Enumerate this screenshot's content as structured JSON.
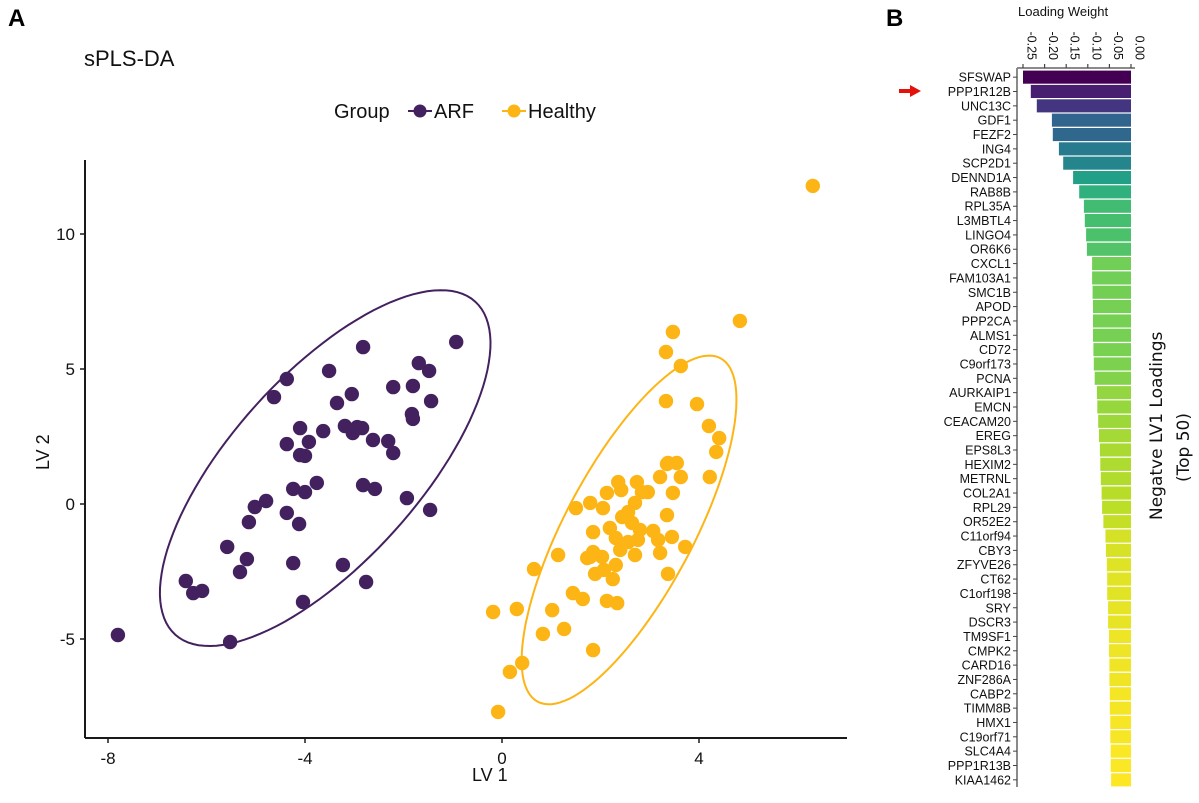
{
  "panel_a_label": "A",
  "panel_b_label": "B",
  "chart_data": [
    {
      "type": "scatter",
      "title": "sPLS-DA",
      "xlabel": "LV 1",
      "ylabel": "LV 2",
      "xlim": [
        -8.4,
        7.0
      ],
      "ylim": [
        -8.7,
        12.8
      ],
      "xticks": [
        -8,
        -4,
        0,
        4
      ],
      "yticks": [
        -5,
        0,
        5,
        10
      ],
      "xtick_labels": [
        "-8",
        "-4",
        "0",
        "4"
      ],
      "ytick_labels": [
        "-5",
        "0",
        "5",
        "10"
      ],
      "grid": false,
      "legend": {
        "title": "Group",
        "placement": "top",
        "entries": [
          {
            "label": "ARF",
            "color": "#43215f"
          },
          {
            "label": "Healthy",
            "color": "#fdb515"
          }
        ]
      },
      "series": [
        {
          "name": "ARF",
          "color": "#43215f",
          "ellipse": {
            "cx": -3.59,
            "cy": 1.33,
            "rx": 4.55,
            "ry": 1.9,
            "angle_deg": 48
          },
          "points": [
            [
              -2.82,
              5.81
            ],
            [
              -0.93,
              6.0
            ],
            [
              -4.37,
              4.63
            ],
            [
              -4.63,
              3.96
            ],
            [
              -3.51,
              4.93
            ],
            [
              -1.69,
              5.22
            ],
            [
              -1.48,
              4.93
            ],
            [
              -2.21,
              4.33
            ],
            [
              -1.81,
              4.37
            ],
            [
              -1.44,
              3.81
            ],
            [
              -1.83,
              3.33
            ],
            [
              -1.81,
              3.15
            ],
            [
              -3.05,
              4.07
            ],
            [
              -3.35,
              3.74
            ],
            [
              -4.1,
              2.81
            ],
            [
              -3.63,
              2.7
            ],
            [
              -4.37,
              2.22
            ],
            [
              -3.92,
              2.3
            ],
            [
              -3.19,
              2.89
            ],
            [
              -2.94,
              2.85
            ],
            [
              -2.84,
              2.81
            ],
            [
              -3.03,
              2.63
            ],
            [
              -2.62,
              2.37
            ],
            [
              -2.31,
              2.33
            ],
            [
              -2.21,
              1.89
            ],
            [
              -4.1,
              1.81
            ],
            [
              -4.0,
              1.78
            ],
            [
              -5.14,
              -0.67
            ],
            [
              -5.02,
              -0.11
            ],
            [
              -4.79,
              0.11
            ],
            [
              -5.58,
              -1.59
            ],
            [
              -5.18,
              -2.04
            ],
            [
              -5.32,
              -2.52
            ],
            [
              -6.42,
              -2.85
            ],
            [
              -6.27,
              -3.3
            ],
            [
              -6.09,
              -3.22
            ],
            [
              -5.52,
              -5.11
            ],
            [
              -4.04,
              -3.63
            ],
            [
              -4.37,
              -0.33
            ],
            [
              -4.12,
              -0.74
            ],
            [
              -4.24,
              -2.19
            ],
            [
              -4.24,
              0.56
            ],
            [
              -4.0,
              0.44
            ],
            [
              -3.76,
              0.78
            ],
            [
              -3.23,
              -2.26
            ],
            [
              -2.76,
              -2.89
            ],
            [
              -2.82,
              0.7
            ],
            [
              -2.58,
              0.56
            ],
            [
              -1.93,
              0.22
            ],
            [
              -1.46,
              -0.22
            ],
            [
              -7.8,
              -4.85
            ]
          ]
        },
        {
          "name": "Healthy",
          "color": "#fdb515",
          "ellipse": {
            "cx": 2.58,
            "cy": -0.96,
            "rx": 3.95,
            "ry": 1.3,
            "angle_deg": 62
          },
          "points": [
            [
              6.31,
              11.78
            ],
            [
              4.83,
              6.78
            ],
            [
              3.47,
              6.37
            ],
            [
              3.33,
              5.63
            ],
            [
              3.63,
              5.11
            ],
            [
              3.33,
              3.81
            ],
            [
              3.96,
              3.7
            ],
            [
              4.2,
              2.89
            ],
            [
              4.41,
              2.44
            ],
            [
              4.35,
              1.93
            ],
            [
              4.22,
              1.0
            ],
            [
              3.37,
              1.52
            ],
            [
              3.21,
              1.0
            ],
            [
              3.47,
              0.41
            ],
            [
              3.35,
              1.48
            ],
            [
              3.55,
              1.52
            ],
            [
              3.63,
              1.0
            ],
            [
              2.36,
              0.81
            ],
            [
              2.42,
              0.52
            ],
            [
              2.74,
              0.81
            ],
            [
              2.84,
              0.44
            ],
            [
              2.96,
              0.44
            ],
            [
              2.13,
              0.41
            ],
            [
              1.79,
              0.04
            ],
            [
              1.5,
              -0.15
            ],
            [
              2.05,
              -0.15
            ],
            [
              2.7,
              0.04
            ],
            [
              2.56,
              -0.3
            ],
            [
              2.44,
              -0.48
            ],
            [
              3.35,
              -0.41
            ],
            [
              2.64,
              -0.7
            ],
            [
              1.85,
              -1.04
            ],
            [
              2.19,
              -0.89
            ],
            [
              2.8,
              -0.96
            ],
            [
              3.07,
              -1.0
            ],
            [
              2.31,
              -1.26
            ],
            [
              2.56,
              -1.41
            ],
            [
              2.76,
              -1.33
            ],
            [
              3.17,
              -1.33
            ],
            [
              3.45,
              -1.22
            ],
            [
              3.72,
              -1.59
            ],
            [
              1.85,
              -1.78
            ],
            [
              2.4,
              -1.7
            ],
            [
              2.7,
              -1.89
            ],
            [
              3.21,
              -1.81
            ],
            [
              1.73,
              -2.0
            ],
            [
              2.03,
              -1.96
            ],
            [
              0.65,
              -2.41
            ],
            [
              1.14,
              -1.89
            ],
            [
              -0.18,
              -4.0
            ],
            [
              0.3,
              -3.89
            ],
            [
              1.02,
              -3.93
            ],
            [
              1.44,
              -3.3
            ],
            [
              1.64,
              -3.52
            ],
            [
              2.13,
              -3.59
            ],
            [
              2.34,
              -3.67
            ],
            [
              0.83,
              -4.81
            ],
            [
              1.26,
              -4.63
            ],
            [
              1.85,
              -5.41
            ],
            [
              0.41,
              -5.89
            ],
            [
              0.16,
              -6.22
            ],
            [
              -0.08,
              -7.7
            ],
            [
              3.37,
              -2.59
            ],
            [
              1.89,
              -2.59
            ],
            [
              2.25,
              -2.78
            ],
            [
              2.31,
              -2.26
            ],
            [
              2.07,
              -2.44
            ],
            [
              1.79,
              -1.96
            ]
          ]
        }
      ]
    },
    {
      "type": "bar",
      "orientation": "horizontal",
      "title": "",
      "xlabel": "Loading Weight",
      "ylabel": "Negatve  LV1 Loadings\n(Top 50)",
      "ylabel_lines": [
        "Negatve  LV1 Loadings",
        "(Top 50)"
      ],
      "xlim": [
        -0.255,
        0.0
      ],
      "xticks": [
        -0.25,
        -0.2,
        -0.15,
        -0.1,
        -0.05,
        0.0
      ],
      "xtick_labels": [
        "-0.25",
        "-0.20",
        "-0.15",
        "-0.10",
        "-0.05",
        "0.00"
      ],
      "color_scale": "viridis",
      "highlight": {
        "category": "PPP1R12B",
        "marker": "red-arrow",
        "color": "#e3120b"
      },
      "categories": [
        "SFSWAP",
        "PPP1R12B",
        "UNC13C",
        "GDF1",
        "FEZF2",
        "ING4",
        "SCP2D1",
        "DENND1A",
        "RAB8B",
        "RPL35A",
        "L3MBTL4",
        "LINGO4",
        "OR6K6",
        "CXCL1",
        "FAM103A1",
        "SMC1B",
        "APOD",
        "PPP2CA",
        "ALMS1",
        "CD72",
        "C9orf173",
        "PCNA",
        "AURKAIP1",
        "EMCN",
        "CEACAM20",
        "EREG",
        "EPS8L3",
        "HEXIM2",
        "METRNL",
        "COL2A1",
        "RPL29",
        "OR52E2",
        "C11orf94",
        "CBY3",
        "ZFYVE26",
        "CT62",
        "C1orf198",
        "SRY",
        "DSCR3",
        "TM9SF1",
        "CMPK2",
        "CARD16",
        "ZNF286A",
        "CABP2",
        "TIMM8B",
        "HMX1",
        "C19orf71",
        "SLC4A4",
        "PPP1R13B",
        "KIAA1462"
      ],
      "values": [
        -0.25,
        -0.232,
        -0.218,
        -0.183,
        -0.181,
        -0.167,
        -0.157,
        -0.134,
        -0.12,
        -0.109,
        -0.107,
        -0.104,
        -0.102,
        -0.09,
        -0.09,
        -0.089,
        -0.088,
        -0.088,
        -0.088,
        -0.087,
        -0.086,
        -0.084,
        -0.079,
        -0.078,
        -0.076,
        -0.074,
        -0.072,
        -0.071,
        -0.07,
        -0.068,
        -0.067,
        -0.064,
        -0.059,
        -0.058,
        -0.056,
        -0.055,
        -0.055,
        -0.053,
        -0.053,
        -0.051,
        -0.051,
        -0.05,
        -0.05,
        -0.049,
        -0.049,
        -0.048,
        -0.048,
        -0.047,
        -0.047,
        -0.046
      ]
    }
  ]
}
